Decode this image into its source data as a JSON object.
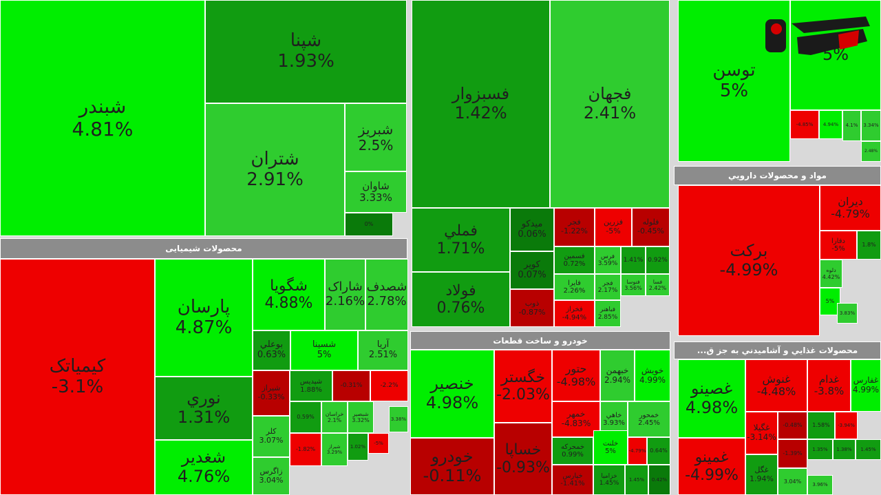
{
  "colors": {
    "bright_green": "#00ee00",
    "green": "#2fcc2f",
    "mid_green": "#119c11",
    "dark_green": "#0a7a0a",
    "red": "#ee0000",
    "dark_red": "#b80000",
    "header_gray": "#8c8c8c"
  },
  "headers": {
    "chemical": "محصولات شیمیایی",
    "pharma": "مواد و محصولات دارويي",
    "auto": "خودرو و ساخت قطعات",
    "food": "...محصولات غذايي و آشاميدني به جز ق"
  },
  "chart_data": {
    "type": "heatmap",
    "title": "",
    "groups": [
      {
        "name": "",
        "items": [
          {
            "symbol": "شبندر",
            "change": "4.81%"
          },
          {
            "symbol": "شپنا",
            "change": "1.93%"
          },
          {
            "symbol": "شتران",
            "change": "2.91%"
          },
          {
            "symbol": "شبریز",
            "change": "2.5%"
          },
          {
            "symbol": "شاوان",
            "change": "3.33%"
          },
          {
            "symbol": "",
            "change": "0%"
          }
        ]
      },
      {
        "name": "",
        "items": [
          {
            "symbol": "فسبزوار",
            "change": "1.42%"
          },
          {
            "symbol": "فجهان",
            "change": "2.41%"
          },
          {
            "symbol": "فملي",
            "change": "1.71%"
          },
          {
            "symbol": "فولاد",
            "change": "0.76%"
          },
          {
            "symbol": "ميدکو",
            "change": "0.06%"
          },
          {
            "symbol": "کویر",
            "change": "0.07%"
          },
          {
            "symbol": "ذوب",
            "change": "-0.87%"
          },
          {
            "symbol": "فجر",
            "change": "-1.22%"
          },
          {
            "symbol": "فزرین",
            "change": "-5%"
          },
          {
            "symbol": "فلوله",
            "change": "-0.45%"
          },
          {
            "symbol": "فسمين",
            "change": "0.72%"
          },
          {
            "symbol": "فرس",
            "change": "3.59%"
          },
          {
            "symbol": "",
            "change": "1.41%"
          },
          {
            "symbol": "",
            "change": "0.92%"
          },
          {
            "symbol": "فايرا",
            "change": "2.26%"
          },
          {
            "symbol": "فجر",
            "change": "2.17%"
          },
          {
            "symbol": "فنوسا",
            "change": "3.56%"
          },
          {
            "symbol": "فسا",
            "change": "2.42%"
          },
          {
            "symbol": "فخراز",
            "change": "-4.94%"
          },
          {
            "symbol": "فباهنر",
            "change": "2.85%"
          }
        ]
      },
      {
        "name": "",
        "items": [
          {
            "symbol": "توسن",
            "change": "5%"
          },
          {
            "symbol": "",
            "change": "5%"
          },
          {
            "symbol": "",
            "change": "-4.85%"
          },
          {
            "symbol": "",
            "change": "4.94%"
          },
          {
            "symbol": "",
            "change": "4.1%"
          },
          {
            "symbol": "",
            "change": "3.34%"
          },
          {
            "symbol": "",
            "change": "2.48%"
          }
        ]
      },
      {
        "name": "مواد و محصولات دارويي",
        "items": [
          {
            "symbol": "برکت",
            "change": "-4.99%"
          },
          {
            "symbol": "دیران",
            "change": "-4.79%"
          },
          {
            "symbol": "دفارا",
            "change": "-5%"
          },
          {
            "symbol": "",
            "change": "1.8%"
          },
          {
            "symbol": "دلوه",
            "change": "4.42%"
          },
          {
            "symbol": "",
            "change": "5%"
          },
          {
            "symbol": "",
            "change": "3.83%"
          }
        ]
      },
      {
        "name": "محصولات شیمیایی",
        "items": [
          {
            "symbol": "کیمیاتک",
            "change": "-3.1%"
          },
          {
            "symbol": "پارسان",
            "change": "4.87%"
          },
          {
            "symbol": "نوري",
            "change": "1.31%"
          },
          {
            "symbol": "شغدير",
            "change": "4.76%"
          },
          {
            "symbol": "شگويا",
            "change": "4.88%"
          },
          {
            "symbol": "شاراک",
            "change": "2.16%"
          },
          {
            "symbol": "شصدف",
            "change": "2.78%"
          },
          {
            "symbol": "بوعلي",
            "change": "0.63%"
          },
          {
            "symbol": "شسينا",
            "change": "5%"
          },
          {
            "symbol": "آريا",
            "change": "2.51%"
          },
          {
            "symbol": "شیراز",
            "change": "-0.33%"
          },
          {
            "symbol": "شپديس",
            "change": "1.88%"
          },
          {
            "symbol": "",
            "change": "-0.31%"
          },
          {
            "symbol": "",
            "change": "-2.2%"
          },
          {
            "symbol": "کلر",
            "change": "3.07%"
          },
          {
            "symbol": "زاگرس",
            "change": "3.04%"
          },
          {
            "symbol": "",
            "change": "0.59%"
          },
          {
            "symbol": "خراسان",
            "change": "2.1%"
          },
          {
            "symbol": "شبصير",
            "change": "3.32%"
          },
          {
            "symbol": "شيراز",
            "change": "3.29%"
          },
          {
            "symbol": "",
            "change": "-1.82%"
          },
          {
            "symbol": "",
            "change": "1.02%"
          },
          {
            "symbol": "",
            "change": "-5%"
          },
          {
            "symbol": "",
            "change": "3.38%"
          }
        ]
      },
      {
        "name": "خودرو و ساخت قطعات",
        "items": [
          {
            "symbol": "خنصير",
            "change": "4.98%"
          },
          {
            "symbol": "خودرو",
            "change": "-0.11%"
          },
          {
            "symbol": "خگستر",
            "change": "-2.03%"
          },
          {
            "symbol": "خساپا",
            "change": "-0.93%"
          },
          {
            "symbol": "حتور",
            "change": "-4.98%"
          },
          {
            "symbol": "خبهمن",
            "change": "2.94%"
          },
          {
            "symbol": "خويش",
            "change": "4.99%"
          },
          {
            "symbol": "خمهر",
            "change": "-4.83%"
          },
          {
            "symbol": "خاهي",
            "change": "3.93%"
          },
          {
            "symbol": "خمحور",
            "change": "2.45%"
          },
          {
            "symbol": "خمحرکه",
            "change": "0.99%"
          },
          {
            "symbol": "خلنت",
            "change": "5%"
          },
          {
            "symbol": "",
            "change": "-4.79%"
          },
          {
            "symbol": "",
            "change": "0.64%"
          },
          {
            "symbol": "خپارس",
            "change": "-1.41%"
          },
          {
            "symbol": "خزاميا",
            "change": "1.45%"
          },
          {
            "symbol": "",
            "change": "1.45%"
          },
          {
            "symbol": "",
            "change": "0.42%"
          }
        ]
      },
      {
        "name": "...محصولات غذايي و آشاميدني به جز ق",
        "items": [
          {
            "symbol": "غصينو",
            "change": "4.98%"
          },
          {
            "symbol": "غمينو",
            "change": "-4.99%"
          },
          {
            "symbol": "غنوش",
            "change": "-4.48%"
          },
          {
            "symbol": "غدام",
            "change": "-3.8%"
          },
          {
            "symbol": "غفارس",
            "change": "4.99%"
          },
          {
            "symbol": "غگيلا",
            "change": "-3.14%"
          },
          {
            "symbol": "",
            "change": "-0.48%"
          },
          {
            "symbol": "",
            "change": "1.58%"
          },
          {
            "symbol": "",
            "change": "-3.94%"
          },
          {
            "symbol": "غگل",
            "change": "1.94%"
          },
          {
            "symbol": "",
            "change": "3.04%"
          },
          {
            "symbol": "",
            "change": "-1.39%"
          },
          {
            "symbol": "",
            "change": "1.35%"
          },
          {
            "symbol": "",
            "change": "1.38%"
          },
          {
            "symbol": "",
            "change": "1.45%"
          },
          {
            "symbol": "",
            "change": "3.96%"
          }
        ]
      }
    ]
  }
}
